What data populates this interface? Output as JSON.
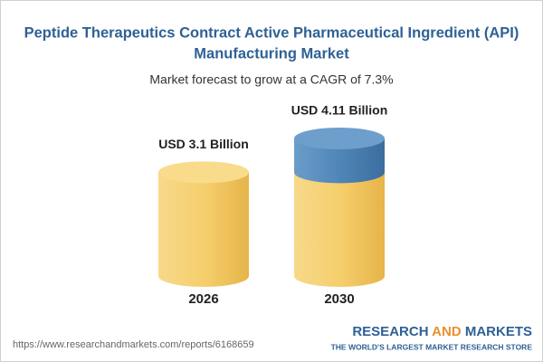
{
  "chart_data": {
    "type": "cylinder",
    "title": [
      "Peptide Therapeutics Contract Active Pharmaceutical Ingredient (API)",
      "Manufacturing Market"
    ],
    "subtitle": "Market forecast to grow at a CAGR of 7.3%",
    "categories": [
      "2026",
      "2030"
    ],
    "values": [
      3.1,
      4.11
    ],
    "value_labels": [
      "USD 3.1 Billion",
      "USD 4.11 Billion"
    ],
    "color": "#f3c860",
    "growth_color": "#4f86b8"
  },
  "footer": {
    "url": "https://www.researchandmarkets.com/reports/6168659",
    "logo": [
      "RESEARCH",
      "AND",
      "MARKETS"
    ],
    "tagline": "THE WORLD'S LARGEST MARKET RESEARCH STORE"
  }
}
